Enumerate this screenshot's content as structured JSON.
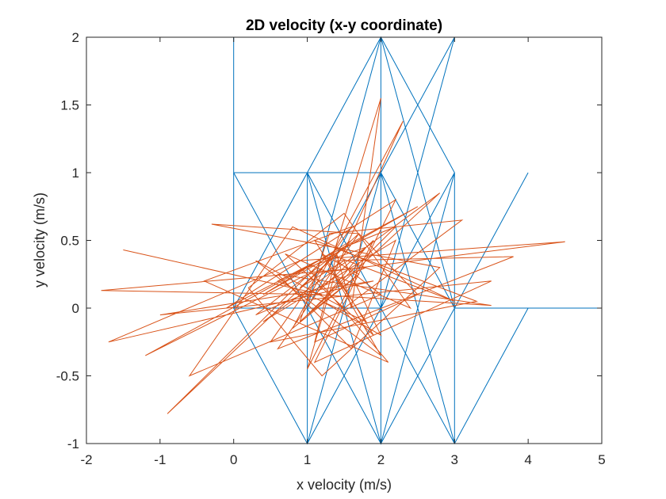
{
  "chart_data": {
    "type": "line",
    "title": "2D velocity (x-y coordinate)",
    "xlabel": "x velocity (m/s)",
    "ylabel": "y velocity (m/s)",
    "xlim": [
      -2,
      5
    ],
    "ylim": [
      -1,
      2
    ],
    "xticks": [
      -2,
      -1,
      0,
      1,
      2,
      3,
      4,
      5
    ],
    "yticks": [
      -1,
      -0.5,
      0,
      0.5,
      1,
      1.5,
      2
    ],
    "xtick_labels": [
      "-2",
      "-1",
      "0",
      "1",
      "2",
      "3",
      "4",
      "5"
    ],
    "ytick_labels": [
      "-1",
      "-0.5",
      "0",
      "0.5",
      "1",
      "1.5",
      "2"
    ],
    "grid": false,
    "series": [
      {
        "color": "#0072BD",
        "x": [
          0,
          0,
          1,
          2,
          3,
          2,
          2,
          3,
          3,
          2,
          1,
          0,
          0,
          1,
          2,
          1,
          1,
          2,
          3,
          2,
          1,
          2,
          2,
          1,
          0,
          1,
          2,
          3,
          3,
          4,
          3,
          2,
          1,
          1,
          2,
          3,
          2,
          1,
          0,
          1,
          2,
          2,
          1,
          0,
          2,
          3,
          4,
          5,
          4,
          3,
          2,
          1,
          1,
          3,
          2,
          1,
          2,
          1,
          0,
          1,
          2,
          3,
          2,
          2,
          1,
          1,
          3,
          2,
          1,
          0,
          0
        ],
        "y": [
          2,
          1,
          0,
          1,
          2,
          0,
          2,
          1,
          0,
          -1,
          0,
          1,
          0,
          1,
          0,
          -1,
          1,
          -1,
          0,
          1,
          -1,
          0,
          2,
          0,
          1,
          0,
          -1,
          -1,
          0,
          1,
          0,
          1,
          0,
          -1,
          0,
          1,
          -1,
          1,
          0,
          -1,
          1,
          -1,
          0,
          0,
          2,
          0,
          0,
          0,
          0,
          -1,
          0,
          1,
          -1,
          1,
          -1,
          0,
          1,
          1,
          0,
          -1,
          -1,
          0,
          1,
          0,
          0,
          -1,
          -1,
          1,
          1,
          1,
          0
        ]
      },
      {
        "color": "#D95319",
        "x": [
          -1.5,
          1.2,
          -1.8,
          1.8,
          0.3,
          1.5,
          -0.1,
          2.2,
          1.1,
          3.5,
          -1.0,
          1.9,
          -1.7,
          0.9,
          4.5,
          1.0,
          -1.2,
          2.5,
          0.4,
          1.6,
          -0.9,
          1.3,
          3.0,
          0.8,
          -0.6,
          2.0,
          1.4,
          3.8,
          0.6,
          1.7,
          -0.3,
          2.8,
          1.2,
          0.2,
          1.5,
          2.4,
          0.7,
          1.9,
          1.1,
          3.3,
          0.5,
          1.6,
          -0.4,
          2.1,
          1.0,
          1.8,
          2.8,
          0.9,
          1.3,
          3.1,
          1.5,
          0.3,
          2.0,
          1.2,
          1.7,
          0.8,
          2.3,
          1.4,
          1.0,
          1.9,
          1.1,
          3.5,
          0.6,
          1.6,
          2.2,
          1.3,
          0.4,
          1.8,
          1.2,
          2.0,
          1.5,
          0.9,
          1.7,
          2.5,
          1.1,
          1.4,
          1.6,
          2.0,
          1.3,
          1.8,
          0.6,
          1.5,
          2.2,
          1.0,
          1.7
        ],
        "y": [
          0.43,
          0.1,
          0.13,
          0.3,
          -0.05,
          0.45,
          0.0,
          0.8,
          -0.4,
          0.2,
          -0.05,
          0.2,
          -0.25,
          0.35,
          0.49,
          0.25,
          -0.35,
          0.75,
          0.1,
          0.5,
          -0.78,
          0.4,
          0.05,
          0.6,
          -0.5,
          0.1,
          0.35,
          0.38,
          -0.3,
          0.55,
          0.62,
          0.3,
          -0.5,
          0.15,
          0.7,
          0.0,
          0.4,
          -0.2,
          0.5,
          0.05,
          -0.25,
          0.6,
          0.2,
          -0.4,
          0.3,
          0.45,
          0.85,
          -0.1,
          0.55,
          0.65,
          0.0,
          0.35,
          -0.35,
          0.4,
          0.25,
          -0.15,
          1.38,
          0.3,
          -0.45,
          0.5,
          0.1,
          0.02,
          0.25,
          -0.3,
          0.5,
          0.2,
          -0.1,
          0.45,
          0.05,
          -0.2,
          0.35,
          0.15,
          0.55,
          0.1,
          -0.25,
          0.4,
          0.0,
          1.55,
          0.3,
          -0.1,
          0.2,
          0.45,
          0.6,
          -0.05,
          0.25
        ]
      }
    ]
  }
}
